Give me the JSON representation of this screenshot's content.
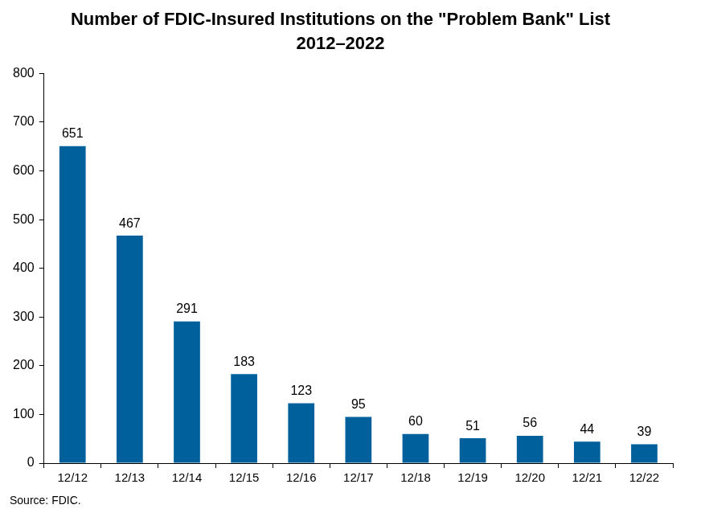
{
  "chart_data": {
    "type": "bar",
    "title": [
      "Number of FDIC-Insured Institutions on the \"Problem Bank\" List",
      "2012–2022"
    ],
    "source": "Source: FDIC.",
    "categories": [
      "12/12",
      "12/13",
      "12/14",
      "12/15",
      "12/16",
      "12/17",
      "12/18",
      "12/19",
      "12/20",
      "12/21",
      "12/22"
    ],
    "values": [
      651,
      467,
      291,
      183,
      123,
      95,
      60,
      51,
      56,
      44,
      39
    ],
    "color": "#00609c",
    "ylim": [
      0,
      800
    ],
    "yticks": [
      0,
      100,
      200,
      300,
      400,
      500,
      600,
      700,
      800
    ],
    "grid": false,
    "data_labels": true
  }
}
